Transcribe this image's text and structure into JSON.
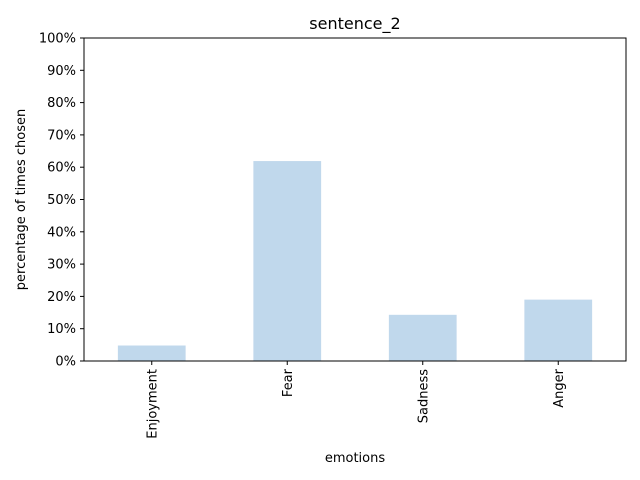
{
  "chart_data": {
    "type": "bar",
    "title": "sentence_2",
    "xlabel": "emotions",
    "ylabel": "percentage of times chosen",
    "categories": [
      "Enjoyment",
      "Fear",
      "Sadness",
      "Anger"
    ],
    "values": [
      4.8,
      61.9,
      14.3,
      19.0
    ],
    "ylim": [
      0,
      100
    ],
    "y_ticks": [
      "0%",
      "10%",
      "20%",
      "30%",
      "40%",
      "50%",
      "60%",
      "70%",
      "80%",
      "90%",
      "100%"
    ],
    "bar_color": "#c0d8ec",
    "grid": false,
    "legend": "none"
  }
}
